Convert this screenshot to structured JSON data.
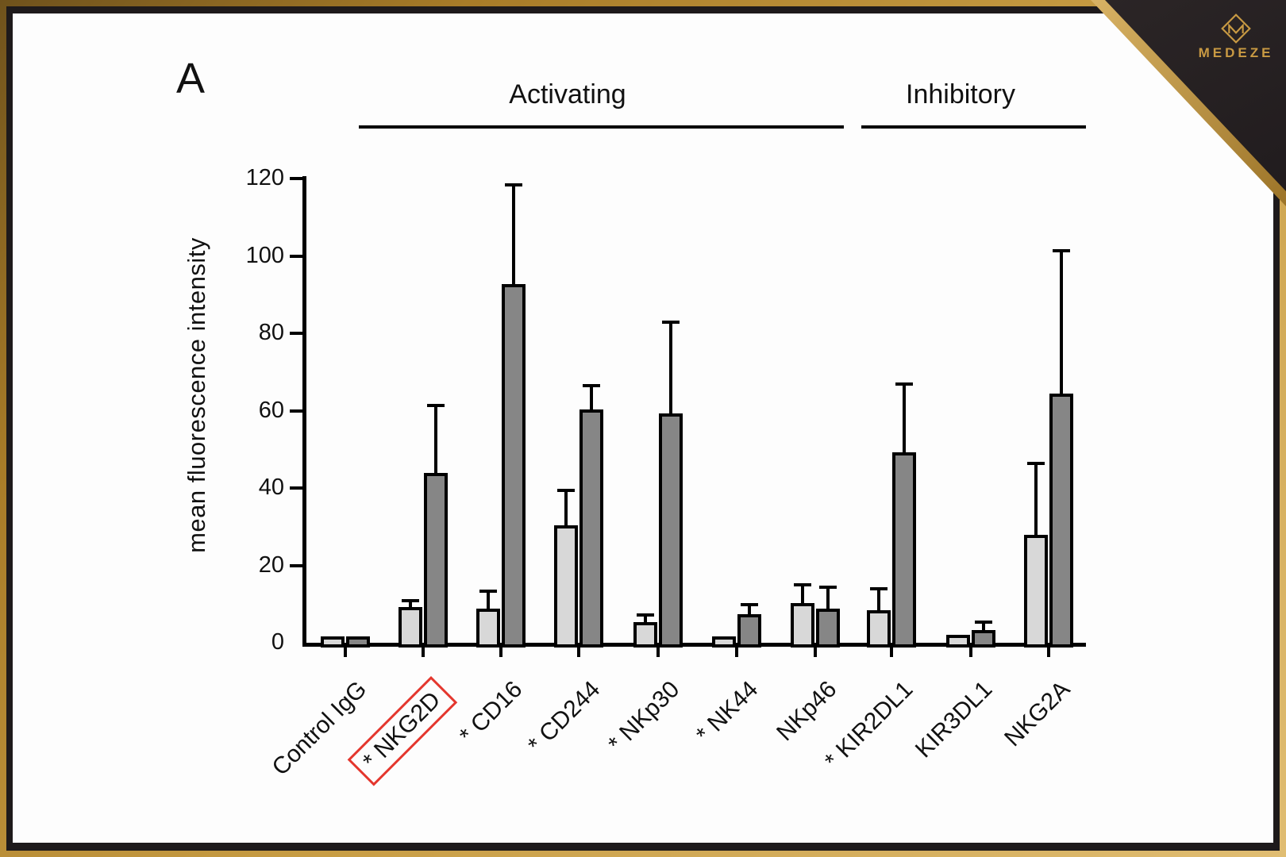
{
  "branding": {
    "logo_text": "MEDEZE",
    "logo_icon": "medeze-diamond-m-icon"
  },
  "panel_label": "A",
  "chart_data": {
    "type": "bar",
    "title": "",
    "ylabel": "mean fluorescence intensity",
    "xlabel": "",
    "ylim": [
      0,
      120
    ],
    "yticks": [
      0,
      20,
      40,
      60,
      80,
      100,
      120
    ],
    "grid": false,
    "legend_position": "none",
    "significance_marker": "*",
    "highlight_box_color": "#e4372e",
    "group_headers": [
      {
        "label": "Activating",
        "span": [
          "NKG2D",
          "NKp46"
        ]
      },
      {
        "label": "Inhibitory",
        "span": [
          "KIR2DL1",
          "NKG2A"
        ]
      }
    ],
    "categories": [
      {
        "label": "Control IgG",
        "starred": false,
        "highlighted": false
      },
      {
        "label": "NKG2D",
        "starred": true,
        "highlighted": true
      },
      {
        "label": "CD16",
        "starred": true,
        "highlighted": false
      },
      {
        "label": "CD244",
        "starred": true,
        "highlighted": false
      },
      {
        "label": "NKp30",
        "starred": true,
        "highlighted": false
      },
      {
        "label": "NK44",
        "starred": true,
        "highlighted": false
      },
      {
        "label": "NKp46",
        "starred": false,
        "highlighted": false
      },
      {
        "label": "KIR2DL1",
        "starred": true,
        "highlighted": false
      },
      {
        "label": "KIR3DL1",
        "starred": false,
        "highlighted": false
      },
      {
        "label": "NKG2A",
        "starred": false,
        "highlighted": false
      }
    ],
    "series": [
      {
        "name": "light-gray-bars",
        "color": "#d8d8d8",
        "values": [
          0.8,
          8.5,
          8.0,
          29.5,
          4.5,
          0.8,
          9.5,
          7.5,
          1.2,
          27.0
        ],
        "errors": [
          0,
          2.0,
          5.0,
          9.5,
          2.2,
          0,
          5.0,
          6.0,
          0,
          19.0
        ]
      },
      {
        "name": "dark-gray-bars",
        "color": "#868686",
        "values": [
          0.8,
          43.0,
          92.0,
          59.5,
          58.5,
          6.5,
          8.0,
          48.5,
          2.5,
          63.5
        ],
        "errors": [
          0,
          18.0,
          26.0,
          6.5,
          24.0,
          3.0,
          6.0,
          18.0,
          2.5,
          37.5
        ]
      }
    ]
  }
}
